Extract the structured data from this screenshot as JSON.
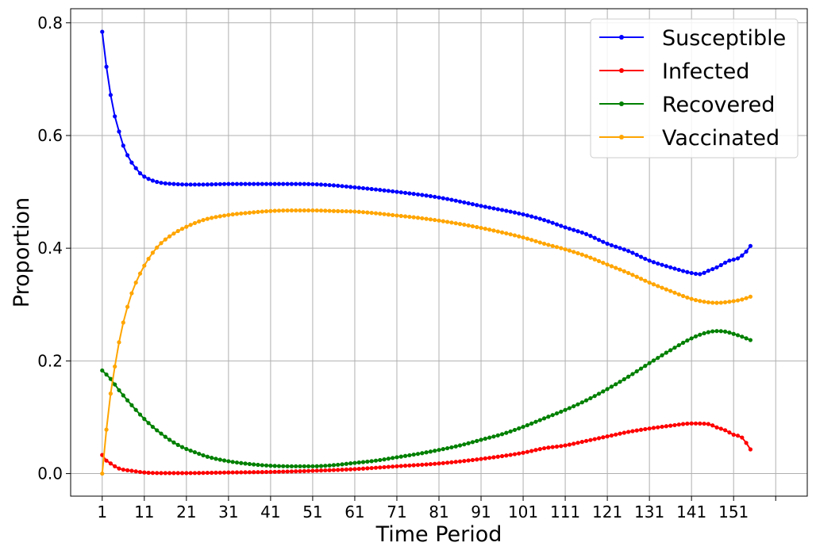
{
  "chart_data": {
    "type": "line",
    "xlabel": "Time Period",
    "ylabel": "Proportion",
    "grid": true,
    "legend_position": "top-right",
    "xlim": [
      -6.5,
      168.5
    ],
    "ylim": [
      -0.04,
      0.825
    ],
    "x_ticks": [
      1,
      11,
      21,
      31,
      41,
      51,
      61,
      71,
      81,
      91,
      101,
      111,
      121,
      131,
      141,
      151,
      161
    ],
    "x_tick_labels": [
      "1",
      "11",
      "21",
      "31",
      "41",
      "51",
      "61",
      "71",
      "81",
      "91",
      "101",
      "111",
      "121",
      "131",
      "141",
      "151",
      ""
    ],
    "y_ticks": [
      0.0,
      0.2,
      0.4,
      0.6,
      0.8
    ],
    "y_tick_labels": [
      "0.0",
      "0.2",
      "0.4",
      "0.6",
      "0.8"
    ],
    "x_start": 1,
    "x_end": 155,
    "series": [
      {
        "name": "Susceptible",
        "color": "#0000ff",
        "key_points": [
          [
            1,
            0.784
          ],
          [
            2,
            0.722
          ],
          [
            3,
            0.672
          ],
          [
            4,
            0.634
          ],
          [
            5,
            0.607
          ],
          [
            6,
            0.582
          ],
          [
            7,
            0.565
          ],
          [
            8,
            0.552
          ],
          [
            9,
            0.542
          ],
          [
            10,
            0.533
          ],
          [
            11,
            0.527
          ],
          [
            13,
            0.52
          ],
          [
            15,
            0.516
          ],
          [
            18,
            0.514
          ],
          [
            21,
            0.513
          ],
          [
            25,
            0.513
          ],
          [
            31,
            0.514
          ],
          [
            41,
            0.514
          ],
          [
            48,
            0.514
          ],
          [
            55,
            0.512
          ],
          [
            61,
            0.508
          ],
          [
            71,
            0.5
          ],
          [
            81,
            0.49
          ],
          [
            91,
            0.475
          ],
          [
            101,
            0.46
          ],
          [
            106,
            0.45
          ],
          [
            111,
            0.437
          ],
          [
            116,
            0.425
          ],
          [
            121,
            0.408
          ],
          [
            126,
            0.395
          ],
          [
            131,
            0.378
          ],
          [
            136,
            0.366
          ],
          [
            141,
            0.356
          ],
          [
            143,
            0.354
          ],
          [
            145,
            0.36
          ],
          [
            147,
            0.366
          ],
          [
            150,
            0.378
          ],
          [
            152,
            0.382
          ],
          [
            154,
            0.394
          ],
          [
            155,
            0.404
          ]
        ]
      },
      {
        "name": "Infected",
        "color": "#ff0000",
        "key_points": [
          [
            1,
            0.033
          ],
          [
            2,
            0.023
          ],
          [
            3,
            0.018
          ],
          [
            4,
            0.013
          ],
          [
            5,
            0.009
          ],
          [
            6,
            0.007
          ],
          [
            8,
            0.005
          ],
          [
            11,
            0.002
          ],
          [
            15,
            0.001
          ],
          [
            21,
            0.001
          ],
          [
            31,
            0.002
          ],
          [
            41,
            0.003
          ],
          [
            51,
            0.005
          ],
          [
            61,
            0.008
          ],
          [
            71,
            0.013
          ],
          [
            81,
            0.018
          ],
          [
            91,
            0.026
          ],
          [
            101,
            0.037
          ],
          [
            106,
            0.045
          ],
          [
            111,
            0.05
          ],
          [
            116,
            0.058
          ],
          [
            121,
            0.066
          ],
          [
            126,
            0.074
          ],
          [
            131,
            0.08
          ],
          [
            136,
            0.085
          ],
          [
            141,
            0.089
          ],
          [
            145,
            0.088
          ],
          [
            147,
            0.082
          ],
          [
            149,
            0.077
          ],
          [
            151,
            0.069
          ],
          [
            153,
            0.064
          ],
          [
            155,
            0.043
          ]
        ]
      },
      {
        "name": "Recovered",
        "color": "#008000",
        "key_points": [
          [
            1,
            0.183
          ],
          [
            3,
            0.168
          ],
          [
            5,
            0.148
          ],
          [
            7,
            0.13
          ],
          [
            9,
            0.113
          ],
          [
            11,
            0.097
          ],
          [
            13,
            0.083
          ],
          [
            15,
            0.071
          ],
          [
            17,
            0.06
          ],
          [
            20,
            0.047
          ],
          [
            23,
            0.038
          ],
          [
            26,
            0.03
          ],
          [
            31,
            0.022
          ],
          [
            36,
            0.017
          ],
          [
            41,
            0.014
          ],
          [
            46,
            0.013
          ],
          [
            51,
            0.013
          ],
          [
            56,
            0.015
          ],
          [
            61,
            0.019
          ],
          [
            66,
            0.023
          ],
          [
            71,
            0.029
          ],
          [
            76,
            0.035
          ],
          [
            81,
            0.042
          ],
          [
            86,
            0.05
          ],
          [
            91,
            0.06
          ],
          [
            96,
            0.07
          ],
          [
            101,
            0.083
          ],
          [
            106,
            0.098
          ],
          [
            111,
            0.113
          ],
          [
            116,
            0.13
          ],
          [
            121,
            0.15
          ],
          [
            126,
            0.172
          ],
          [
            131,
            0.196
          ],
          [
            136,
            0.219
          ],
          [
            141,
            0.24
          ],
          [
            144,
            0.249
          ],
          [
            147,
            0.253
          ],
          [
            149,
            0.252
          ],
          [
            151,
            0.248
          ],
          [
            153,
            0.243
          ],
          [
            155,
            0.237
          ]
        ]
      },
      {
        "name": "Vaccinated",
        "color": "#ffa500",
        "key_points": [
          [
            1,
            0.0
          ],
          [
            2,
            0.078
          ],
          [
            3,
            0.142
          ],
          [
            4,
            0.19
          ],
          [
            5,
            0.233
          ],
          [
            6,
            0.268
          ],
          [
            7,
            0.296
          ],
          [
            8,
            0.32
          ],
          [
            9,
            0.339
          ],
          [
            10,
            0.355
          ],
          [
            11,
            0.369
          ],
          [
            13,
            0.392
          ],
          [
            15,
            0.409
          ],
          [
            18,
            0.426
          ],
          [
            21,
            0.438
          ],
          [
            25,
            0.45
          ],
          [
            31,
            0.459
          ],
          [
            36,
            0.463
          ],
          [
            41,
            0.466
          ],
          [
            46,
            0.467
          ],
          [
            51,
            0.467
          ],
          [
            56,
            0.466
          ],
          [
            61,
            0.465
          ],
          [
            66,
            0.462
          ],
          [
            71,
            0.458
          ],
          [
            76,
            0.454
          ],
          [
            81,
            0.449
          ],
          [
            86,
            0.443
          ],
          [
            91,
            0.436
          ],
          [
            96,
            0.428
          ],
          [
            101,
            0.419
          ],
          [
            106,
            0.408
          ],
          [
            111,
            0.398
          ],
          [
            116,
            0.386
          ],
          [
            121,
            0.371
          ],
          [
            126,
            0.356
          ],
          [
            131,
            0.339
          ],
          [
            136,
            0.324
          ],
          [
            141,
            0.31
          ],
          [
            144,
            0.305
          ],
          [
            147,
            0.303
          ],
          [
            150,
            0.305
          ],
          [
            153,
            0.309
          ],
          [
            155,
            0.314
          ]
        ]
      }
    ]
  }
}
